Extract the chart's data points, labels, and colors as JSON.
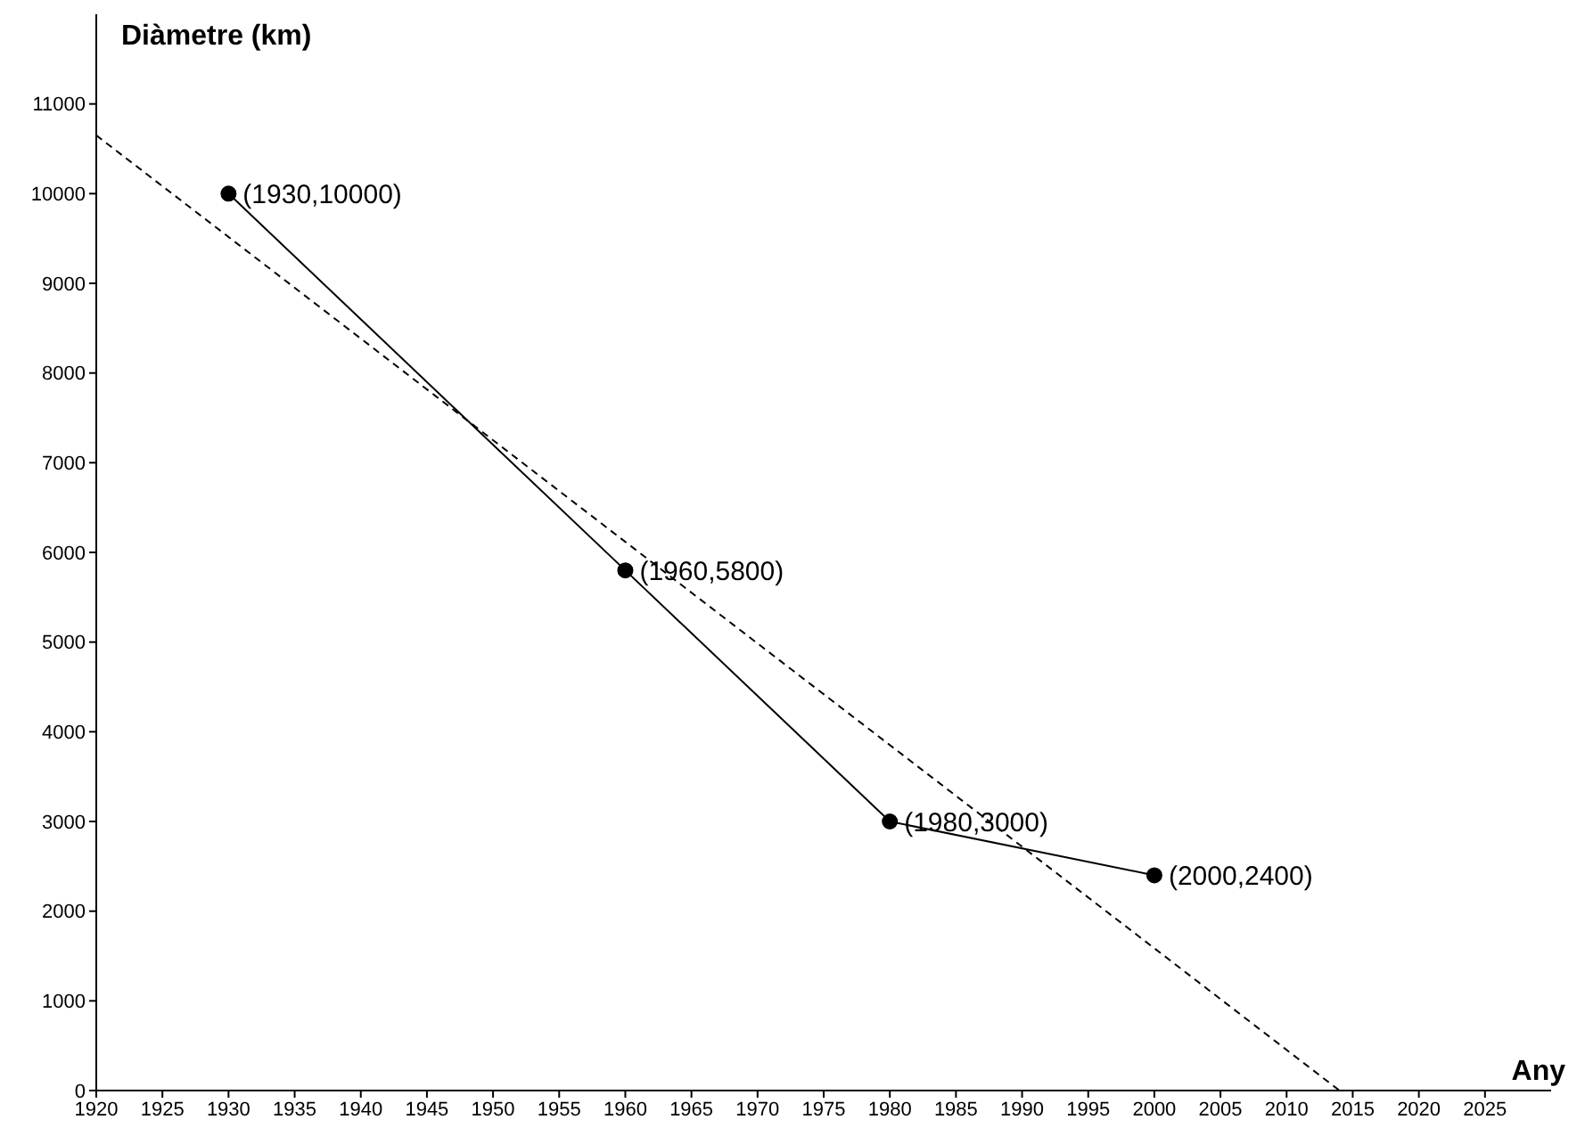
{
  "chart_data": {
    "type": "line",
    "xlabel": "Any",
    "ylabel": "Diàmetre (km)",
    "xlim": [
      1920,
      2030
    ],
    "xticks": [
      1920,
      1925,
      1930,
      1935,
      1940,
      1945,
      1950,
      1955,
      1960,
      1965,
      1970,
      1975,
      1980,
      1985,
      1990,
      1995,
      2000,
      2005,
      2010,
      2015,
      2020,
      2025
    ],
    "ylim": [
      0,
      12000
    ],
    "yticks": [
      0,
      1000,
      2000,
      3000,
      4000,
      5000,
      6000,
      7000,
      8000,
      9000,
      10000,
      11000
    ],
    "grid": false,
    "legend": false,
    "series": [
      {
        "color": "#000000",
        "x": [
          1930,
          1960,
          1980,
          2000
        ],
        "values": [
          10000,
          5800,
          3000,
          2400
        ],
        "marker": "circle",
        "line_style": "solid"
      },
      {
        "color": "#000000",
        "x": [
          1920,
          2014
        ],
        "values": [
          10650,
          0
        ],
        "marker": "none",
        "line_style": "dashed"
      }
    ],
    "annotations": [
      {
        "text": "(1930,10000)",
        "x": 1930,
        "y": 10000
      },
      {
        "text": "(1960,5800)",
        "x": 1960,
        "y": 5800
      },
      {
        "text": "(1980,3000)",
        "x": 1980,
        "y": 3000
      },
      {
        "text": "(2000,2400)",
        "x": 2000,
        "y": 2400
      }
    ]
  }
}
